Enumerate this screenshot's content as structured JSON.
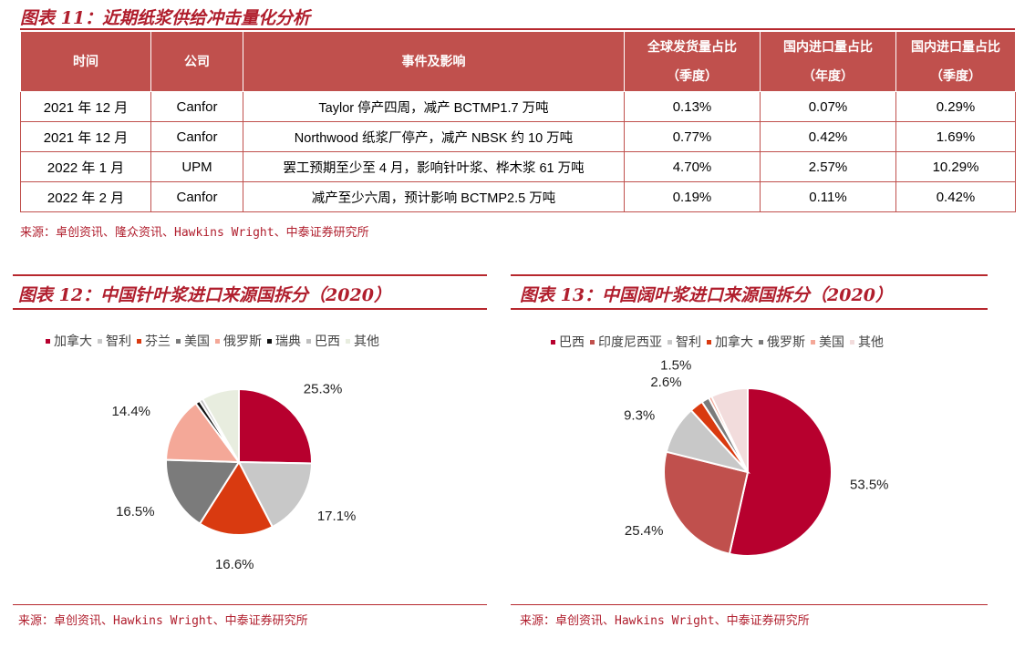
{
  "table_section": {
    "title": "图表 11：近期纸浆供给冲击量化分析",
    "headers": [
      {
        "l1": "时间",
        "l2": ""
      },
      {
        "l1": "公司",
        "l2": ""
      },
      {
        "l1": "事件及影响",
        "l2": ""
      },
      {
        "l1": "全球发货量占比",
        "l2": "（季度）"
      },
      {
        "l1": "国内进口量占比",
        "l2": "（年度）"
      },
      {
        "l1": "国内进口量占比",
        "l2": "（季度）"
      }
    ],
    "rows": [
      [
        "2021 年 12 月",
        "Canfor",
        "Taylor 停产四周，减产 BCTMP1.7 万吨",
        "0.13%",
        "0.07%",
        "0.29%"
      ],
      [
        "2021 年 12 月",
        "Canfor",
        "Northwood 纸浆厂停产，减产 NBSK 约 10 万吨",
        "0.77%",
        "0.42%",
        "1.69%"
      ],
      [
        "2022 年 1 月",
        "UPM",
        "罢工预期至少至 4 月，影响针叶浆、桦木浆 61 万吨",
        "4.70%",
        "2.57%",
        "10.29%"
      ],
      [
        "2022 年 2 月",
        "Canfor",
        "减产至少六周，预计影响 BCTMP2.5 万吨",
        "0.19%",
        "0.11%",
        "0.42%"
      ]
    ],
    "source": "来源：卓创资讯、隆众资讯、Hawkins Wright、中泰证券研究所"
  },
  "figure12": {
    "title": "图表 12：中国针叶浆进口来源国拆分（2020）",
    "source": "来源：卓创资讯、Hawkins Wright、中泰证券研究所"
  },
  "figure13": {
    "title": "图表 13：中国阔叶浆进口来源国拆分（2020）",
    "source": "来源：卓创资讯、Hawkins Wright、中泰证券研究所"
  },
  "chart_data": [
    {
      "type": "pie",
      "title": "图表 12：中国针叶浆进口来源国拆分（2020）",
      "legend_position": "top",
      "categories": [
        "加拿大",
        "智利",
        "芬兰",
        "美国",
        "俄罗斯",
        "瑞典",
        "巴西",
        "其他"
      ],
      "values": [
        25.3,
        17.1,
        16.6,
        16.5,
        14.4,
        1.0,
        0.8,
        8.3
      ],
      "data_labels": [
        "25.3%",
        "17.1%",
        "16.6%",
        "16.5%",
        "14.4%",
        "",
        "",
        ""
      ],
      "colors": [
        "#b7002e",
        "#c8c8c8",
        "#d93a10",
        "#7b7b7b",
        "#f4a898",
        "#111111",
        "#bfbfbf",
        "#e8eddf"
      ]
    },
    {
      "type": "pie",
      "title": "图表 13：中国阔叶浆进口来源国拆分（2020）",
      "legend_position": "top",
      "categories": [
        "巴西",
        "印度尼西亚",
        "智利",
        "加拿大",
        "俄罗斯",
        "美国",
        "其他"
      ],
      "values": [
        53.5,
        25.4,
        9.3,
        2.6,
        1.5,
        0.6,
        7.1
      ],
      "data_labels": [
        "53.5%",
        "25.4%",
        "9.3%",
        "2.6%",
        "1.5%",
        "",
        ""
      ],
      "colors": [
        "#b7002e",
        "#c0504d",
        "#c8c8c8",
        "#d93a10",
        "#7b7b7b",
        "#f4a898",
        "#f2dcdc"
      ]
    }
  ]
}
